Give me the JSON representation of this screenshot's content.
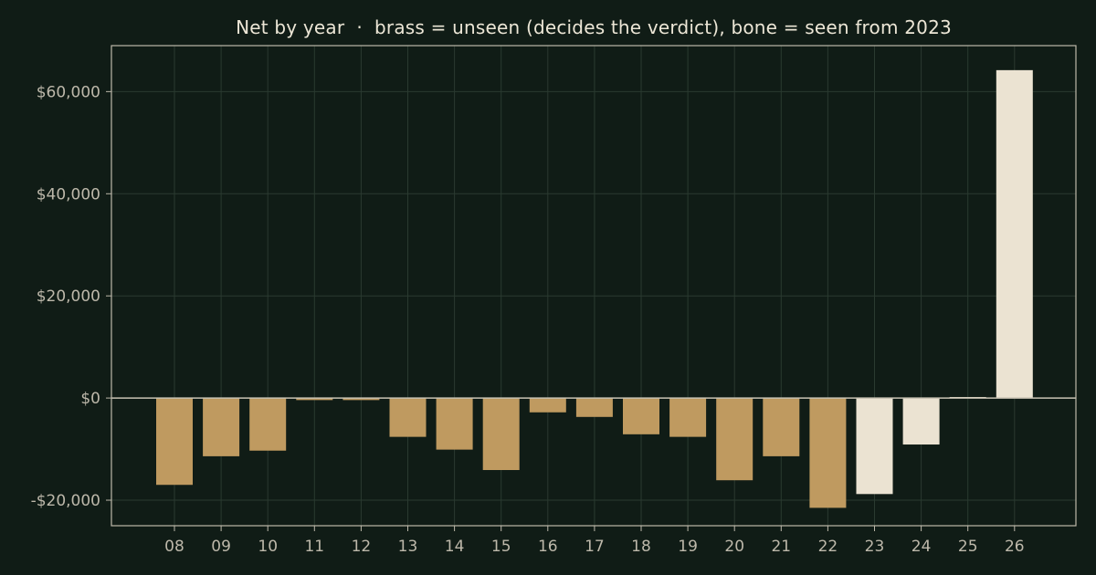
{
  "chart_data": {
    "type": "bar",
    "title": "Net by year  ·  brass = unseen (decides the verdict), bone = seen from 2023",
    "xlabel": "",
    "ylabel": "",
    "categories": [
      "08",
      "09",
      "10",
      "11",
      "12",
      "13",
      "14",
      "15",
      "16",
      "17",
      "18",
      "19",
      "20",
      "21",
      "22",
      "23",
      "24",
      "25",
      "26"
    ],
    "values": [
      -17000,
      -11400,
      -10300,
      -400,
      -400,
      -7600,
      -10100,
      -14100,
      -2800,
      -3700,
      -7100,
      -7600,
      -16100,
      -11400,
      -21500,
      -18800,
      -9100,
      200,
      64200
    ],
    "seen": [
      false,
      false,
      false,
      false,
      false,
      false,
      false,
      false,
      false,
      false,
      false,
      false,
      false,
      false,
      false,
      true,
      true,
      true,
      true
    ],
    "ylim": [
      -25000,
      69000
    ],
    "yticks": [
      -20000,
      0,
      20000,
      40000,
      60000
    ],
    "ytick_labels": [
      "-$20,000",
      "$0",
      "$20,000",
      "$40,000",
      "$60,000"
    ],
    "grid": true,
    "colors": {
      "unseen": "#bf9a60",
      "seen": "#ebe3d2",
      "background": "#101c16",
      "axis": "#bdb8aa",
      "grid": "#2a3a30",
      "zero_line": "#c8c2b3"
    }
  }
}
